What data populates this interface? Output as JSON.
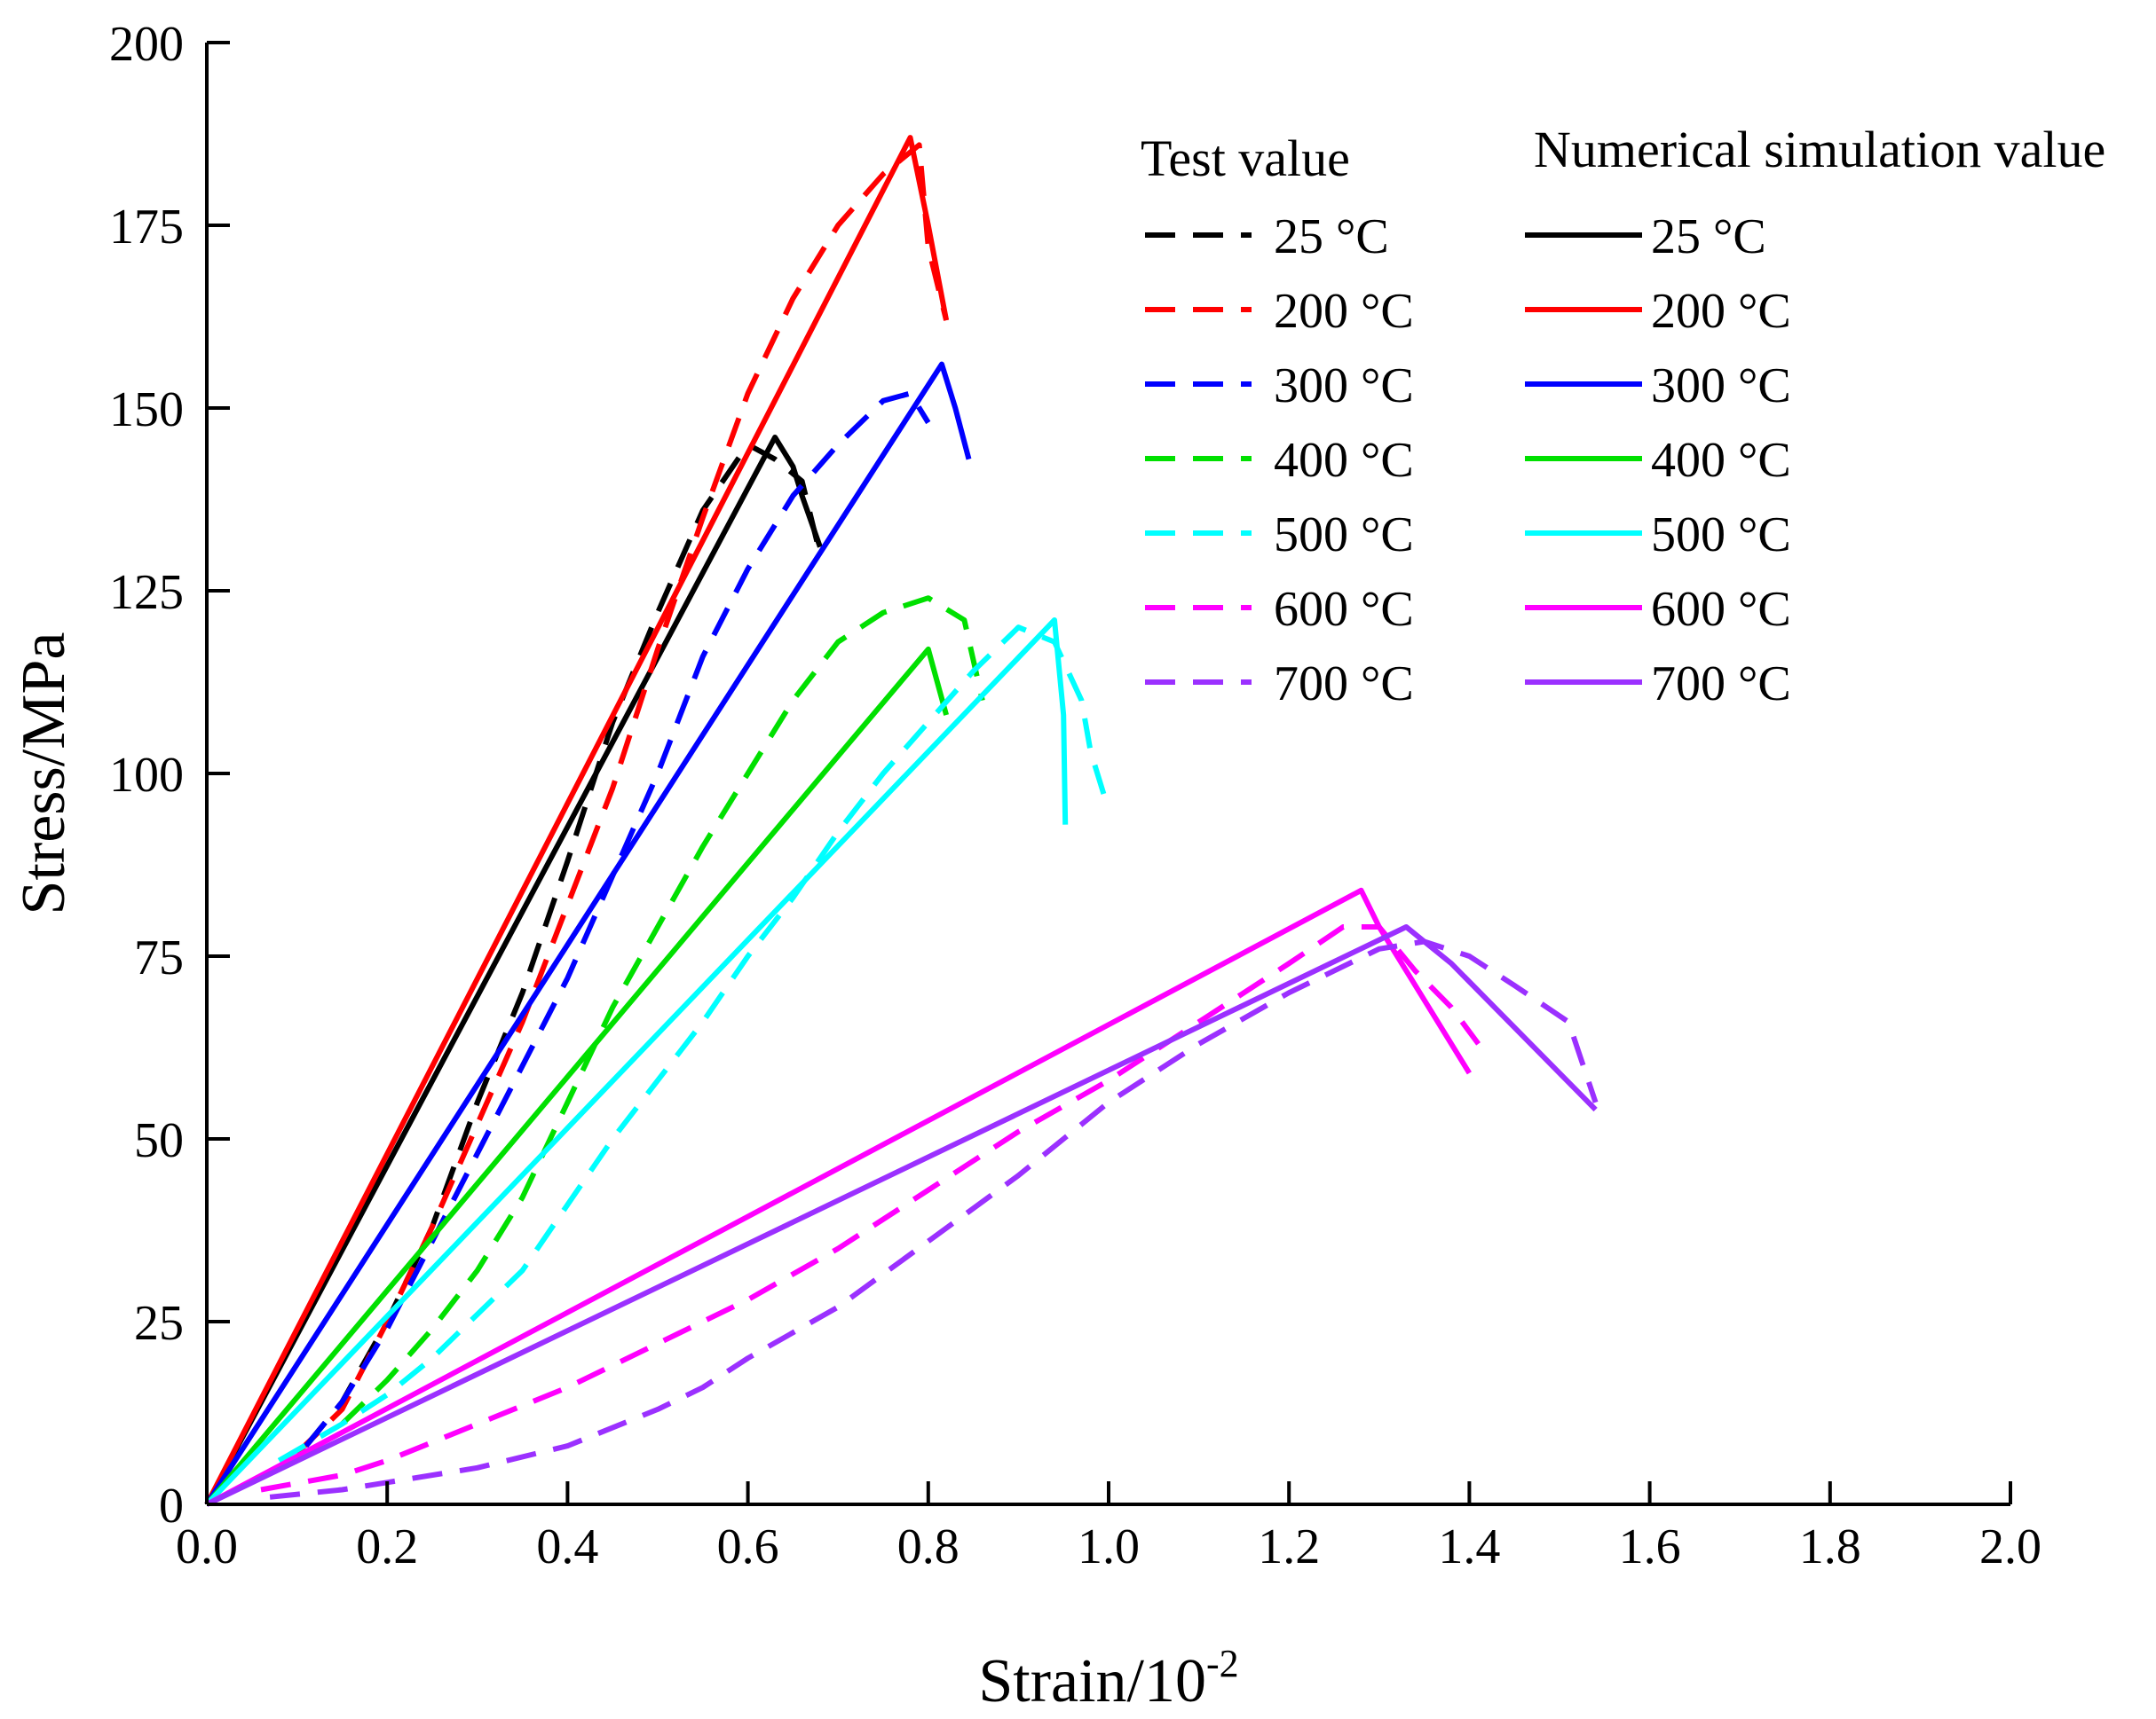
{
  "chart_data": {
    "type": "line",
    "xlabel_main": "Strain/10",
    "xlabel_sup": "-2",
    "ylabel": "Stress/MPa",
    "xlim": [
      0.0,
      2.0
    ],
    "ylim": [
      0,
      200
    ],
    "xticks": [
      0.0,
      0.2,
      0.4,
      0.6,
      0.8,
      1.0,
      1.2,
      1.4,
      1.6,
      1.8,
      2.0
    ],
    "xtick_labels": [
      "0.0",
      "0.2",
      "0.4",
      "0.6",
      "0.8",
      "1.0",
      "1.2",
      "1.4",
      "1.6",
      "1.8",
      "2.0"
    ],
    "yticks": [
      0,
      25,
      50,
      75,
      100,
      125,
      150,
      175,
      200
    ],
    "ytick_labels": [
      "0",
      "25",
      "50",
      "75",
      "100",
      "125",
      "150",
      "175",
      "200"
    ],
    "legend": {
      "test_title": "Test value",
      "sim_title": "Numerical simulation value",
      "labels": [
        "25 °C",
        "200 °C",
        "300 °C",
        "400 °C",
        "500 °C",
        "600 °C",
        "700 °C"
      ]
    },
    "series": [
      {
        "name": "25 °C",
        "kind": "test",
        "color": "#000000",
        "x": [
          0.11,
          0.15,
          0.2,
          0.25,
          0.3,
          0.35,
          0.4,
          0.45,
          0.5,
          0.55,
          0.6,
          0.63,
          0.66,
          0.68
        ],
        "y": [
          8,
          14,
          25,
          38,
          55,
          70,
          88,
          107,
          122,
          136,
          145,
          143,
          140,
          130
        ]
      },
      {
        "name": "25 °C",
        "kind": "sim",
        "color": "#000000",
        "x": [
          0.0,
          0.63,
          0.65,
          0.66,
          0.68
        ],
        "y": [
          0,
          146,
          142,
          138,
          131
        ]
      },
      {
        "name": "200 °C",
        "kind": "test",
        "color": "#ff0000",
        "x": [
          0.1,
          0.15,
          0.2,
          0.25,
          0.3,
          0.35,
          0.4,
          0.45,
          0.5,
          0.55,
          0.6,
          0.65,
          0.7,
          0.75,
          0.79,
          0.8,
          0.82
        ],
        "y": [
          7,
          13,
          25,
          38,
          52,
          66,
          82,
          98,
          117,
          135,
          152,
          165,
          175,
          182,
          186,
          172,
          162
        ]
      },
      {
        "name": "200 °C",
        "kind": "sim",
        "color": "#ff0000",
        "x": [
          0.0,
          0.78,
          0.8,
          0.82
        ],
        "y": [
          0,
          187,
          175,
          162
        ]
      },
      {
        "name": "300 °C",
        "kind": "test",
        "color": "#0000ff",
        "x": [
          0.11,
          0.15,
          0.2,
          0.25,
          0.3,
          0.35,
          0.4,
          0.45,
          0.5,
          0.55,
          0.6,
          0.65,
          0.7,
          0.75,
          0.78,
          0.8
        ],
        "y": [
          8,
          14,
          24,
          36,
          48,
          60,
          72,
          86,
          100,
          116,
          128,
          138,
          145,
          151,
          152,
          148
        ]
      },
      {
        "name": "300 °C",
        "kind": "sim",
        "color": "#0000ff",
        "x": [
          0.0,
          0.815,
          0.83,
          0.845
        ],
        "y": [
          0,
          156,
          150,
          143
        ]
      },
      {
        "name": "400 °C",
        "kind": "test",
        "color": "#00e000",
        "x": [
          0.15,
          0.2,
          0.25,
          0.3,
          0.35,
          0.4,
          0.45,
          0.5,
          0.55,
          0.6,
          0.65,
          0.7,
          0.75,
          0.8,
          0.84,
          0.86
        ],
        "y": [
          11,
          17,
          24,
          32,
          42,
          55,
          68,
          79,
          90,
          100,
          110,
          118,
          122,
          124,
          121,
          110
        ]
      },
      {
        "name": "400 °C",
        "kind": "sim",
        "color": "#00e000",
        "x": [
          0.0,
          0.8,
          0.82
        ],
        "y": [
          0,
          117,
          108
        ]
      },
      {
        "name": "500 °C",
        "kind": "test",
        "color": "#00ffff",
        "x": [
          0.08,
          0.15,
          0.2,
          0.25,
          0.3,
          0.35,
          0.4,
          0.45,
          0.5,
          0.55,
          0.6,
          0.65,
          0.7,
          0.75,
          0.8,
          0.85,
          0.9,
          0.94,
          0.97,
          0.98,
          1.0
        ],
        "y": [
          6,
          11,
          15,
          20,
          26,
          32,
          41,
          50,
          58,
          66,
          75,
          83,
          92,
          100,
          107,
          114,
          120,
          118,
          110,
          103,
          95
        ]
      },
      {
        "name": "500 °C",
        "kind": "sim",
        "color": "#00ffff",
        "x": [
          0.0,
          0.94,
          0.95,
          0.952
        ],
        "y": [
          0,
          121,
          108,
          93
        ]
      },
      {
        "name": "600 °C",
        "kind": "test",
        "color": "#ff00ff",
        "x": [
          0.06,
          0.15,
          0.2,
          0.3,
          0.4,
          0.5,
          0.6,
          0.7,
          0.8,
          0.9,
          1.0,
          1.1,
          1.2,
          1.26,
          1.3,
          1.34,
          1.38,
          1.41
        ],
        "y": [
          2,
          4,
          6,
          11,
          16,
          22,
          28,
          35,
          43,
          51,
          58,
          66,
          74,
          79,
          79,
          73,
          68,
          63
        ]
      },
      {
        "name": "600 °C",
        "kind": "sim",
        "color": "#ff00ff",
        "x": [
          0.0,
          1.28,
          1.3,
          1.335,
          1.4
        ],
        "y": [
          0,
          84,
          79,
          72,
          59
        ]
      },
      {
        "name": "700 °C",
        "kind": "test",
        "color": "#9b30ff",
        "x": [
          0.07,
          0.15,
          0.2,
          0.3,
          0.4,
          0.5,
          0.55,
          0.6,
          0.7,
          0.8,
          0.9,
          1.0,
          1.1,
          1.2,
          1.3,
          1.35,
          1.4,
          1.45,
          1.51,
          1.54
        ],
        "y": [
          1,
          2,
          3,
          5,
          8,
          13,
          16,
          20,
          27,
          36,
          45,
          55,
          63,
          70,
          76,
          77,
          75,
          71,
          66,
          55
        ]
      },
      {
        "name": "700 °C",
        "kind": "sim",
        "color": "#9b30ff",
        "x": [
          0.0,
          1.33,
          1.38,
          1.54
        ],
        "y": [
          0,
          79,
          74,
          54
        ]
      }
    ]
  }
}
